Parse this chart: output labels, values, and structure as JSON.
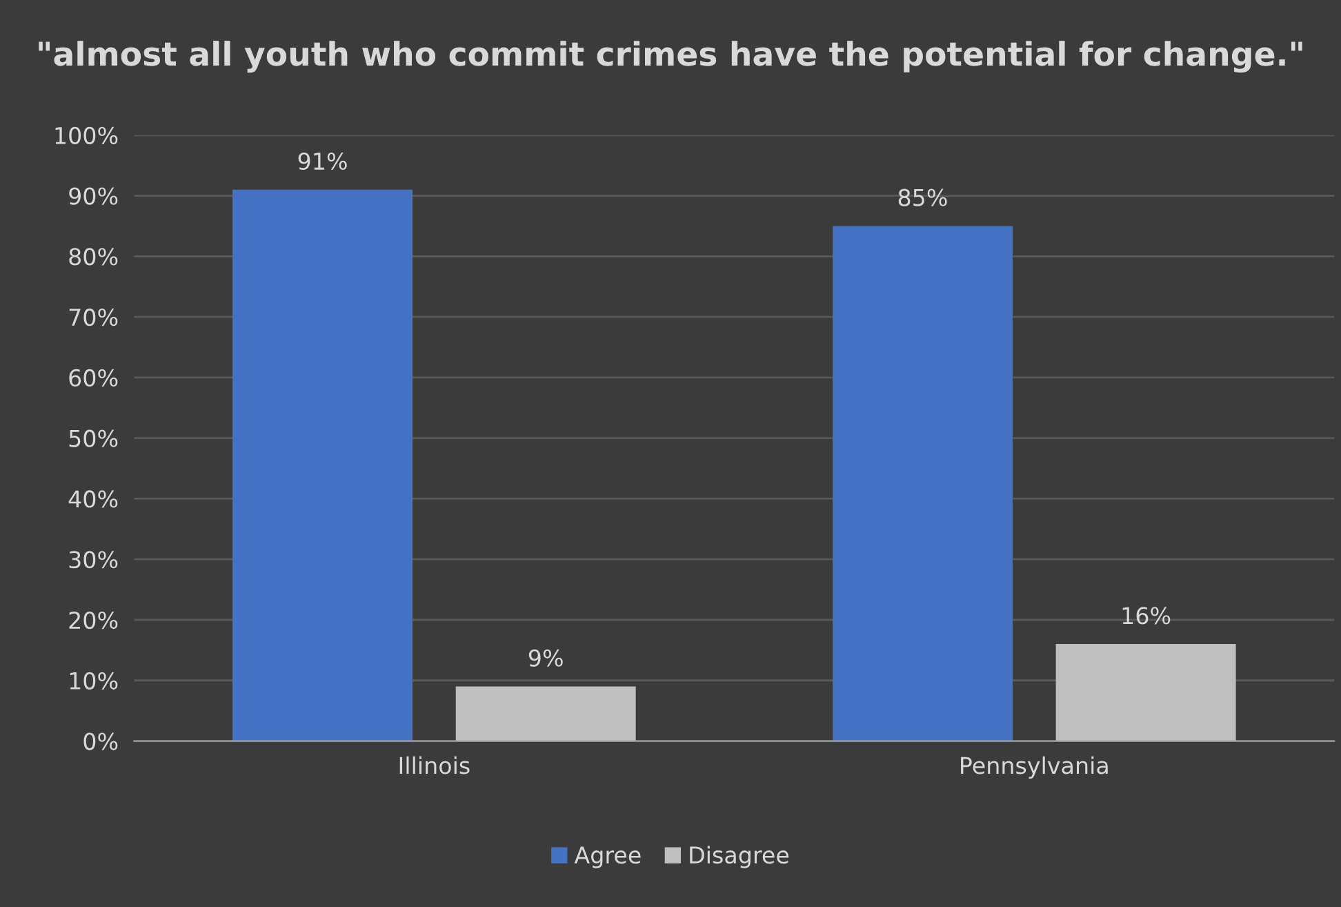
{
  "chart_data": {
    "type": "bar",
    "title": "\"almost all youth who commit crimes have the potential for change.\"",
    "categories": [
      "Illinois",
      "Pennsylvania"
    ],
    "series": [
      {
        "name": "Agree",
        "color": "#4472c4",
        "values": [
          91,
          85
        ],
        "value_labels": [
          "91%",
          "85%"
        ]
      },
      {
        "name": "Disagree",
        "color": "#bfbfbf",
        "values": [
          9,
          16
        ],
        "value_labels": [
          "9%",
          "16%"
        ]
      }
    ],
    "ylim": [
      0,
      100
    ],
    "yticks": [
      {
        "value": 0,
        "label": "0%"
      },
      {
        "value": 10,
        "label": "10%"
      },
      {
        "value": 20,
        "label": "20%"
      },
      {
        "value": 30,
        "label": "30%"
      },
      {
        "value": 40,
        "label": "40%"
      },
      {
        "value": 50,
        "label": "50%"
      },
      {
        "value": 60,
        "label": "60%"
      },
      {
        "value": 70,
        "label": "70%"
      },
      {
        "value": 80,
        "label": "80%"
      },
      {
        "value": 90,
        "label": "90%"
      },
      {
        "value": 100,
        "label": "100%"
      }
    ],
    "grid": "y",
    "legend": "bottom"
  }
}
